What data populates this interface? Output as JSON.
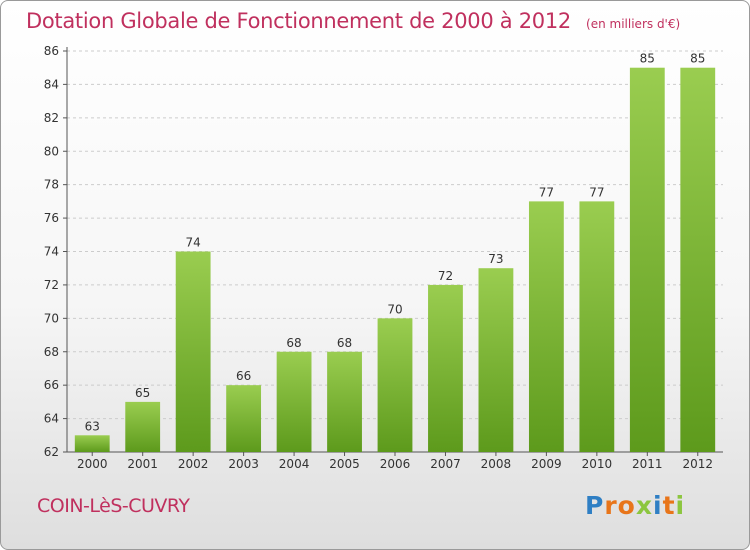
{
  "title": "Dotation Globale de Fonctionnement de 2000 à 2012",
  "unit_note": "(en milliers d'€)",
  "commune": "COIN-LèS-CUVRY",
  "logo": {
    "text": "Proxiti",
    "letters": [
      {
        "ch": "P",
        "color": "#2f7fc4"
      },
      {
        "ch": "r",
        "color": "#e8751a"
      },
      {
        "ch": "o",
        "color": "#e8751a"
      },
      {
        "ch": "x",
        "color": "#8cc63f"
      },
      {
        "ch": "i",
        "color": "#2f7fc4"
      },
      {
        "ch": "t",
        "color": "#e8751a"
      },
      {
        "ch": "i",
        "color": "#8cc63f"
      }
    ]
  },
  "colors": {
    "title": "#c0305e",
    "bar_top": "#9acd50",
    "bar_bottom": "#5d9a1c",
    "axis": "#555555",
    "grid": "#cccccc"
  },
  "chart_data": {
    "type": "bar",
    "title": "Dotation Globale de Fonctionnement de 2000 à 2012",
    "xlabel": "",
    "ylabel": "",
    "categories": [
      "2000",
      "2001",
      "2002",
      "2003",
      "2004",
      "2005",
      "2006",
      "2007",
      "2008",
      "2009",
      "2010",
      "2011",
      "2012"
    ],
    "values": [
      63,
      65,
      74,
      66,
      68,
      68,
      70,
      72,
      73,
      77,
      77,
      85,
      85
    ],
    "ylim": [
      62,
      86
    ],
    "yticks": [
      62,
      64,
      66,
      68,
      70,
      72,
      74,
      76,
      78,
      80,
      82,
      84,
      86
    ],
    "grid": true,
    "data_labels": true
  }
}
